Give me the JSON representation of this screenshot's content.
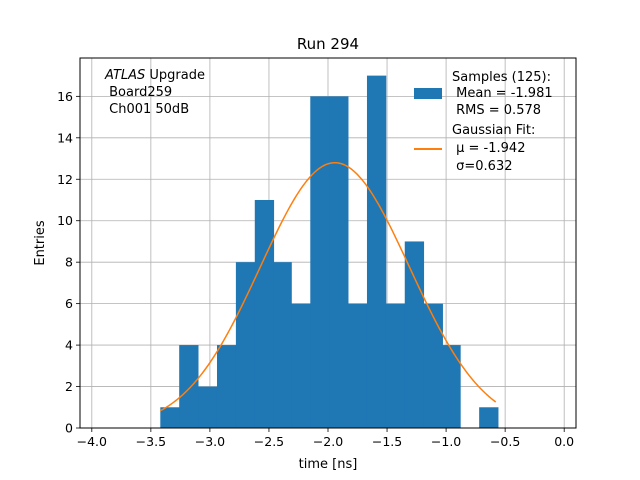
{
  "chart_data": {
    "type": "bar",
    "title": "Run 294",
    "xlabel": "time [ns]",
    "ylabel": "Entries",
    "xlim": [
      -4.1,
      0.1
    ],
    "ylim": [
      0,
      17.85
    ],
    "xticks": [
      -4.0,
      -3.5,
      -3.0,
      -2.5,
      -2.0,
      -1.5,
      -1.0,
      -0.5,
      0.0
    ],
    "xtick_labels": [
      "−4.0",
      "−3.5",
      "−3.0",
      "−2.5",
      "−2.0",
      "−1.5",
      "−1.0",
      "−0.5",
      "0.0"
    ],
    "yticks": [
      0,
      2,
      4,
      6,
      8,
      10,
      12,
      14,
      16
    ],
    "ytick_labels": [
      "0",
      "2",
      "4",
      "6",
      "8",
      "10",
      "12",
      "14",
      "16"
    ],
    "grid": true,
    "bar_color": "#1f77b4",
    "fit_color": "#ff7f0e",
    "bins": [
      {
        "lo": -3.42,
        "hi": -3.26,
        "count": 1
      },
      {
        "lo": -3.26,
        "hi": -3.1,
        "count": 4
      },
      {
        "lo": -3.1,
        "hi": -2.94,
        "count": 2
      },
      {
        "lo": -2.94,
        "hi": -2.78,
        "count": 4
      },
      {
        "lo": -2.78,
        "hi": -2.62,
        "count": 8
      },
      {
        "lo": -2.62,
        "hi": -2.46,
        "count": 11
      },
      {
        "lo": -2.46,
        "hi": -2.31,
        "count": 8
      },
      {
        "lo": -2.31,
        "hi": -2.15,
        "count": 6
      },
      {
        "lo": -2.15,
        "hi": -1.99,
        "count": 16
      },
      {
        "lo": -1.99,
        "hi": -1.83,
        "count": 16
      },
      {
        "lo": -1.83,
        "hi": -1.67,
        "count": 6
      },
      {
        "lo": -1.67,
        "hi": -1.51,
        "count": 17
      },
      {
        "lo": -1.51,
        "hi": -1.35,
        "count": 6
      },
      {
        "lo": -1.35,
        "hi": -1.19,
        "count": 9
      },
      {
        "lo": -1.19,
        "hi": -1.03,
        "count": 6
      },
      {
        "lo": -1.03,
        "hi": -0.88,
        "count": 4
      },
      {
        "lo": -0.88,
        "hi": -0.72,
        "count": 0
      },
      {
        "lo": -0.72,
        "hi": -0.56,
        "count": 1
      }
    ],
    "fit": {
      "mu": -1.942,
      "sigma": 0.632,
      "amplitude": 12.8,
      "x_range": [
        -3.42,
        -0.58
      ]
    },
    "annotation_lines": [
      "ATLAS",
      " Upgrade",
      " Board259",
      " Ch001 50dB"
    ],
    "legend": {
      "placement": "top-right",
      "samples_lines": [
        "Samples (125):",
        " Mean = -1.981",
        " RMS = 0.578"
      ],
      "fit_lines": [
        "Gaussian Fit:",
        " μ = -1.942",
        " σ=0.632"
      ]
    }
  }
}
